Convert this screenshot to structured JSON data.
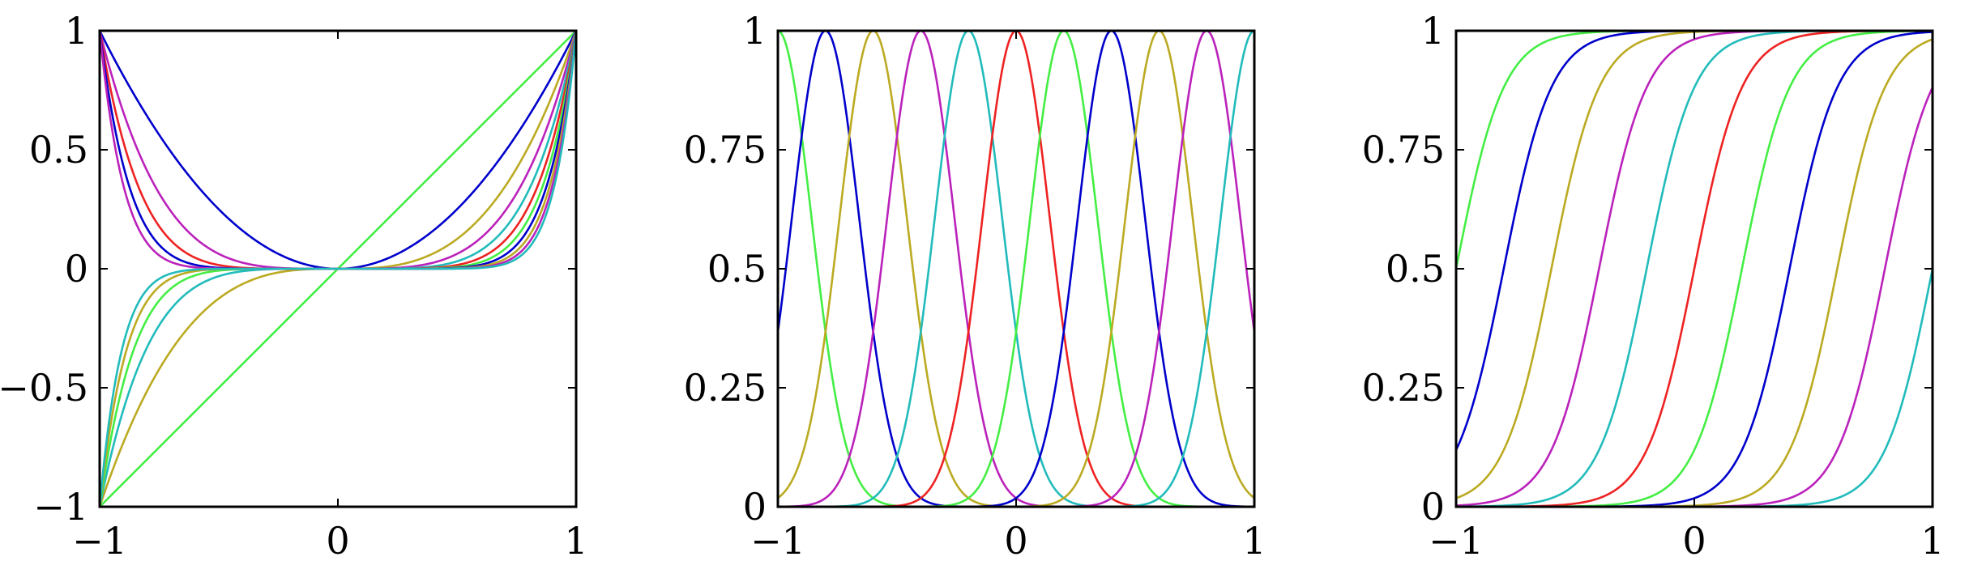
{
  "chart_data": [
    {
      "type": "line",
      "title": "",
      "xlabel": "",
      "ylabel": "",
      "xlim": [
        -1,
        1
      ],
      "ylim": [
        -1,
        1
      ],
      "grid": false,
      "x_ticks": [
        -1,
        0,
        1
      ],
      "y_ticks": [
        -1,
        -0.5,
        0,
        0.5,
        1
      ],
      "x_tick_labels": [
        "−1",
        "0",
        "1"
      ],
      "y_tick_labels": [
        "−1",
        "−0.5",
        "0",
        "0.5",
        "1"
      ],
      "function": "x^n",
      "series": [
        {
          "n": 1,
          "color": "#44ee44"
        },
        {
          "n": 2,
          "color": "#0000cc"
        },
        {
          "n": 3,
          "color": "#bbaa22"
        },
        {
          "n": 4,
          "color": "#bb22bb"
        },
        {
          "n": 5,
          "color": "#22bbbb"
        },
        {
          "n": 6,
          "color": "#ee2222"
        },
        {
          "n": 7,
          "color": "#44ee44"
        },
        {
          "n": 8,
          "color": "#0000cc"
        },
        {
          "n": 9,
          "color": "#bbaa22"
        },
        {
          "n": 10,
          "color": "#bb22bb"
        },
        {
          "n": 11,
          "color": "#22bbbb"
        }
      ]
    },
    {
      "type": "line",
      "title": "",
      "xlabel": "",
      "ylabel": "",
      "xlim": [
        -1,
        1
      ],
      "ylim": [
        0,
        1
      ],
      "grid": false,
      "x_ticks": [
        -1,
        0,
        1
      ],
      "y_ticks": [
        0,
        0.25,
        0.5,
        0.75,
        1
      ],
      "x_tick_labels": [
        "−1",
        "0",
        "1"
      ],
      "y_tick_labels": [
        "0",
        "0.25",
        "0.5",
        "0.75",
        "1"
      ],
      "function": "gaussian",
      "width": 0.2,
      "series": [
        {
          "center": -1.0,
          "color": "#44ee44"
        },
        {
          "center": -0.8,
          "color": "#0000cc"
        },
        {
          "center": -0.6,
          "color": "#bbaa22"
        },
        {
          "center": -0.4,
          "color": "#bb22bb"
        },
        {
          "center": -0.2,
          "color": "#22bbbb"
        },
        {
          "center": 0.0,
          "color": "#ee2222"
        },
        {
          "center": 0.2,
          "color": "#44ee44"
        },
        {
          "center": 0.4,
          "color": "#0000cc"
        },
        {
          "center": 0.6,
          "color": "#bbaa22"
        },
        {
          "center": 0.8,
          "color": "#bb22bb"
        },
        {
          "center": 1.0,
          "color": "#22bbbb"
        }
      ]
    },
    {
      "type": "line",
      "title": "",
      "xlabel": "",
      "ylabel": "",
      "xlim": [
        -1,
        1
      ],
      "ylim": [
        0,
        1
      ],
      "grid": false,
      "x_ticks": [
        -1,
        0,
        1
      ],
      "y_ticks": [
        0,
        0.25,
        0.5,
        0.75,
        1
      ],
      "x_tick_labels": [
        "−1",
        "0",
        "1"
      ],
      "y_tick_labels": [
        "0",
        "0.25",
        "0.5",
        "0.75",
        "1"
      ],
      "function": "sigmoid",
      "slope": 10,
      "series": [
        {
          "center": -1.0,
          "color": "#44ee44"
        },
        {
          "center": -0.8,
          "color": "#0000cc"
        },
        {
          "center": -0.6,
          "color": "#bbaa22"
        },
        {
          "center": -0.4,
          "color": "#bb22bb"
        },
        {
          "center": -0.2,
          "color": "#22bbbb"
        },
        {
          "center": 0.0,
          "color": "#ee2222"
        },
        {
          "center": 0.2,
          "color": "#44ee44"
        },
        {
          "center": 0.4,
          "color": "#0000cc"
        },
        {
          "center": 0.6,
          "color": "#bbaa22"
        },
        {
          "center": 0.8,
          "color": "#bb22bb"
        },
        {
          "center": 1.0,
          "color": "#22bbbb"
        }
      ]
    }
  ]
}
